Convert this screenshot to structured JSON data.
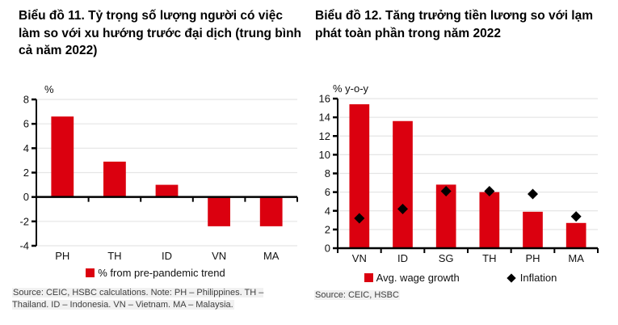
{
  "colors": {
    "bar_red": "#db000f",
    "diamond_black": "#000000",
    "gridline": "#e5e5e5",
    "axis": "#000000",
    "text": "#111111",
    "source_text": "#3d3d3d",
    "source_bg": "#f1f1f1"
  },
  "left_panel": {
    "title": "Biểu đồ 11. Tỷ trọng số lượng người có việc làm so với xu hướng trước đại dịch (trung bình cả năm 2022)",
    "legend": [
      {
        "label": "% from pre-pandemic trend",
        "marker": "square",
        "color": "#db000f"
      }
    ],
    "source": "Source: CEIC, HSBC calculations. Note: PH – Philippines. TH – Thailand. ID – Indonesia. VN – Vietnam. MA – Malaysia."
  },
  "right_panel": {
    "title": "Biểu đồ 12. Tăng trưởng tiền lương so với lạm phát toàn phần trong năm 2022",
    "legend": [
      {
        "label": "Avg. wage growth",
        "marker": "square",
        "color": "#db000f"
      },
      {
        "label": "Inflation",
        "marker": "diamond",
        "color": "#000000"
      }
    ],
    "source": "Source: CEIC, HSBC"
  },
  "chart_data": [
    {
      "type": "bar",
      "title": "Biểu đồ 11. Tỷ trọng số lượng người có việc làm so với xu hướng trước đại dịch (trung bình cả năm 2022)",
      "xlabel": "",
      "ylabel": "%",
      "categories": [
        "PH",
        "TH",
        "ID",
        "VN",
        "MA"
      ],
      "series": [
        {
          "name": "% from pre-pandemic trend",
          "type": "bar",
          "marker": "square",
          "color": "#db000f",
          "values": [
            6.6,
            2.9,
            1.0,
            -2.4,
            -2.4
          ]
        }
      ],
      "ylim": [
        -4,
        8
      ],
      "ytick": 2,
      "grid": true,
      "legend_position": "bottom"
    },
    {
      "type": "bar",
      "title": "Biểu đồ 12. Tăng trưởng tiền lương so với lạm phát toàn phần trong năm 2022",
      "xlabel": "",
      "ylabel": "% y-o-y",
      "categories": [
        "VN",
        "ID",
        "SG",
        "TH",
        "PH",
        "MA"
      ],
      "series": [
        {
          "name": "Avg. wage growth",
          "type": "bar",
          "marker": "square",
          "color": "#db000f",
          "values": [
            15.4,
            13.6,
            6.8,
            6.0,
            3.9,
            2.7
          ]
        },
        {
          "name": "Inflation",
          "type": "scatter",
          "marker": "diamond",
          "color": "#000000",
          "values": [
            3.2,
            4.2,
            6.1,
            6.1,
            5.8,
            3.4
          ]
        }
      ],
      "ylim": [
        0,
        16
      ],
      "ytick": 2,
      "grid": true,
      "legend_position": "bottom"
    }
  ]
}
